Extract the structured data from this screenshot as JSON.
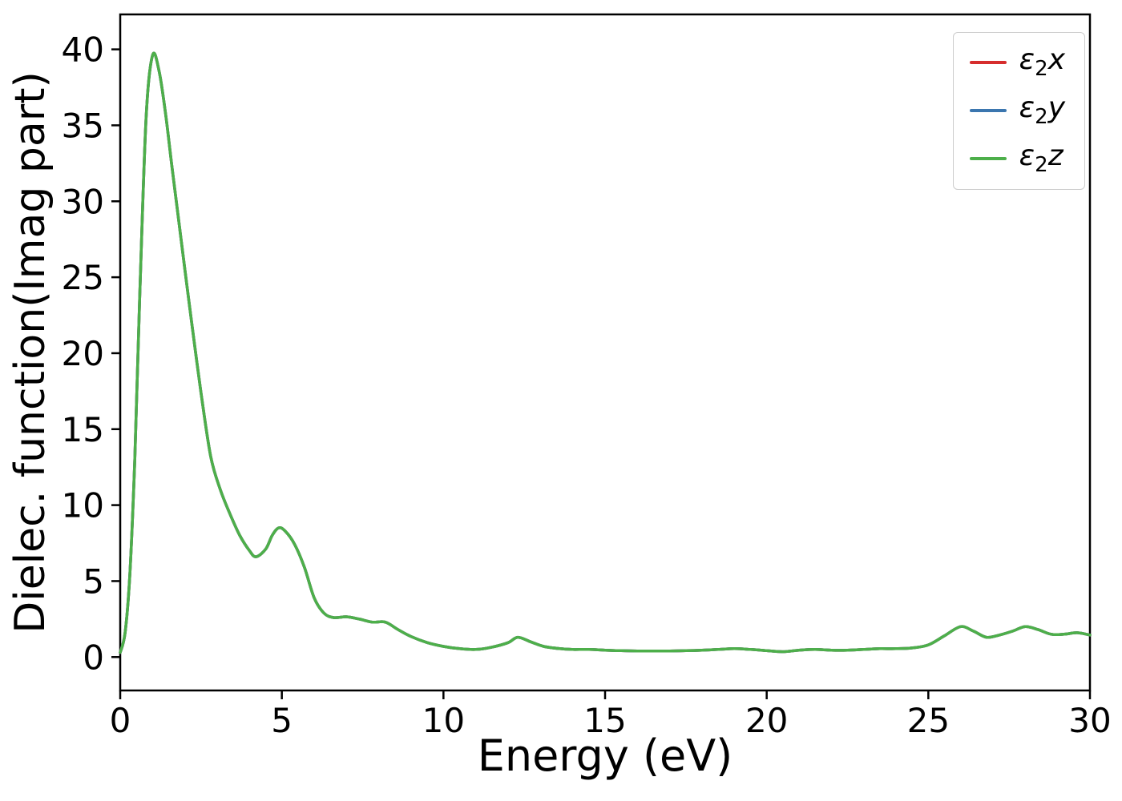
{
  "figure": {
    "background_color": "#ffffff",
    "axes_color": "#000000"
  },
  "chart_data": {
    "type": "line",
    "title": "",
    "xlabel": "Energy (eV)",
    "ylabel": "Dielec. function(Imag part)",
    "xlim": [
      0,
      30
    ],
    "ylim": [
      -2.2,
      42.3
    ],
    "xticks": [
      0,
      5,
      10,
      15,
      20,
      25,
      30
    ],
    "yticks": [
      0,
      5,
      10,
      15,
      20,
      25,
      30,
      35,
      40
    ],
    "grid": false,
    "legend": {
      "position": "upper right",
      "labels": [
        "ε₂x",
        "ε₂y",
        "ε₂z"
      ]
    },
    "note": "All three series overlap exactly; the green ε₂z curve is drawn last and is the visible one.",
    "x": [
      0,
      0.15,
      0.3,
      0.45,
      0.6,
      0.8,
      1.0,
      1.2,
      1.4,
      1.6,
      1.8,
      2.0,
      2.2,
      2.5,
      2.8,
      3.1,
      3.4,
      3.7,
      4.0,
      4.2,
      4.5,
      4.7,
      4.9,
      5.1,
      5.4,
      5.7,
      6.0,
      6.3,
      6.6,
      7.0,
      7.4,
      7.8,
      8.2,
      8.6,
      9.0,
      9.5,
      10.0,
      10.5,
      11.0,
      11.5,
      12.0,
      12.3,
      12.7,
      13.1,
      13.6,
      14.0,
      14.5,
      15.0,
      15.5,
      16.0,
      16.5,
      17.0,
      17.5,
      18.0,
      18.5,
      19.0,
      19.5,
      20.0,
      20.5,
      21.0,
      21.5,
      22.0,
      22.5,
      23.0,
      23.5,
      24.0,
      24.5,
      25.0,
      25.5,
      26.0,
      26.4,
      26.8,
      27.2,
      27.6,
      28.0,
      28.4,
      28.8,
      29.2,
      29.6,
      30.0
    ],
    "series": [
      {
        "name": "ε2x",
        "legend": {
          "symbol": "ε",
          "sub": "2",
          "var": "x"
        },
        "color": "#d62d2d",
        "values": [
          0.3,
          1.6,
          5.5,
          13.0,
          23.5,
          35.5,
          39.6,
          38.6,
          35.8,
          32.3,
          28.9,
          25.5,
          22.2,
          17.4,
          13.2,
          11.0,
          9.4,
          8.0,
          7.0,
          6.6,
          7.1,
          8.0,
          8.5,
          8.3,
          7.4,
          5.9,
          3.9,
          2.9,
          2.6,
          2.65,
          2.5,
          2.3,
          2.3,
          1.8,
          1.35,
          0.95,
          0.7,
          0.55,
          0.5,
          0.65,
          0.95,
          1.3,
          1.0,
          0.7,
          0.55,
          0.5,
          0.5,
          0.45,
          0.42,
          0.4,
          0.4,
          0.4,
          0.42,
          0.45,
          0.5,
          0.55,
          0.5,
          0.42,
          0.35,
          0.45,
          0.5,
          0.45,
          0.45,
          0.5,
          0.55,
          0.55,
          0.6,
          0.8,
          1.4,
          2.0,
          1.7,
          1.3,
          1.45,
          1.7,
          2.0,
          1.8,
          1.5,
          1.5,
          1.6,
          1.45
        ]
      },
      {
        "name": "ε2y",
        "legend": {
          "symbol": "ε",
          "sub": "2",
          "var": "y"
        },
        "color": "#3b76af",
        "values": [
          0.3,
          1.6,
          5.5,
          13.0,
          23.5,
          35.5,
          39.6,
          38.6,
          35.8,
          32.3,
          28.9,
          25.5,
          22.2,
          17.4,
          13.2,
          11.0,
          9.4,
          8.0,
          7.0,
          6.6,
          7.1,
          8.0,
          8.5,
          8.3,
          7.4,
          5.9,
          3.9,
          2.9,
          2.6,
          2.65,
          2.5,
          2.3,
          2.3,
          1.8,
          1.35,
          0.95,
          0.7,
          0.55,
          0.5,
          0.65,
          0.95,
          1.3,
          1.0,
          0.7,
          0.55,
          0.5,
          0.5,
          0.45,
          0.42,
          0.4,
          0.4,
          0.4,
          0.42,
          0.45,
          0.5,
          0.55,
          0.5,
          0.42,
          0.35,
          0.45,
          0.5,
          0.45,
          0.45,
          0.5,
          0.55,
          0.55,
          0.6,
          0.8,
          1.4,
          2.0,
          1.7,
          1.3,
          1.45,
          1.7,
          2.0,
          1.8,
          1.5,
          1.5,
          1.6,
          1.45
        ]
      },
      {
        "name": "ε2z",
        "legend": {
          "symbol": "ε",
          "sub": "2",
          "var": "z"
        },
        "color": "#4daf4a",
        "values": [
          0.3,
          1.6,
          5.5,
          13.0,
          23.5,
          35.5,
          39.6,
          38.6,
          35.8,
          32.3,
          28.9,
          25.5,
          22.2,
          17.4,
          13.2,
          11.0,
          9.4,
          8.0,
          7.0,
          6.6,
          7.1,
          8.0,
          8.5,
          8.3,
          7.4,
          5.9,
          3.9,
          2.9,
          2.6,
          2.65,
          2.5,
          2.3,
          2.3,
          1.8,
          1.35,
          0.95,
          0.7,
          0.55,
          0.5,
          0.65,
          0.95,
          1.3,
          1.0,
          0.7,
          0.55,
          0.5,
          0.5,
          0.45,
          0.42,
          0.4,
          0.4,
          0.4,
          0.42,
          0.45,
          0.5,
          0.55,
          0.5,
          0.42,
          0.35,
          0.45,
          0.5,
          0.45,
          0.45,
          0.5,
          0.55,
          0.55,
          0.6,
          0.8,
          1.4,
          2.0,
          1.7,
          1.3,
          1.45,
          1.7,
          2.0,
          1.8,
          1.5,
          1.5,
          1.6,
          1.45
        ]
      }
    ]
  }
}
